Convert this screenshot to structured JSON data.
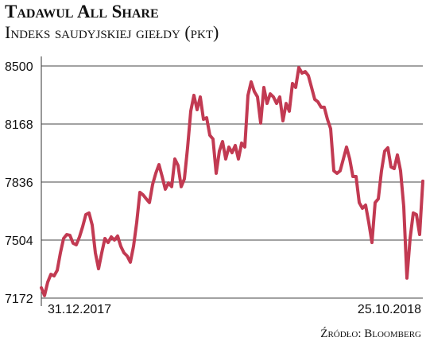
{
  "chart_data": {
    "type": "line",
    "title": "Tadawul All Share",
    "subtitle": "Indeks saudyjskiej giełdy (pkt)",
    "source": "Źródło: Bloomberg",
    "categories": [
      "31.12.2017",
      null,
      null,
      null,
      null,
      null,
      null,
      null,
      null,
      null,
      null,
      null,
      null,
      null,
      null,
      null,
      null,
      null,
      null,
      null,
      null,
      null,
      null,
      null,
      null,
      null,
      null,
      null,
      null,
      null,
      null,
      null,
      null,
      null,
      null,
      null,
      null,
      null,
      null,
      null,
      null,
      null,
      null,
      null,
      null,
      null,
      null,
      null,
      null,
      null,
      null,
      null,
      null,
      null,
      null,
      null,
      null,
      null,
      null,
      null,
      null,
      null,
      null,
      null,
      null,
      null,
      null,
      null,
      null,
      null,
      null,
      null,
      null,
      null,
      null,
      null,
      null,
      null,
      null,
      null,
      null,
      null,
      null,
      null,
      null,
      null,
      null,
      null,
      null,
      null,
      null,
      null,
      null,
      null,
      null,
      null,
      null,
      null,
      null,
      null,
      null,
      null,
      null,
      null,
      null,
      null,
      null,
      null,
      null,
      null,
      null,
      null,
      null,
      null,
      null,
      null,
      null,
      null,
      null,
      null,
      "25.10.2018"
    ],
    "series": [
      {
        "name": "Tadawul All Share",
        "color": "#c23a52",
        "values": [
          7231,
          7186,
          7263,
          7308,
          7299,
          7331,
          7431,
          7513,
          7536,
          7531,
          7486,
          7477,
          7522,
          7581,
          7650,
          7659,
          7590,
          7431,
          7340,
          7431,
          7513,
          7490,
          7522,
          7504,
          7527,
          7468,
          7431,
          7413,
          7377,
          7468,
          7604,
          7777,
          7763,
          7740,
          7718,
          7822,
          7886,
          7936,
          7868,
          7795,
          7831,
          7809,
          7968,
          7931,
          7809,
          7854,
          8032,
          8241,
          8332,
          8250,
          8323,
          8195,
          8204,
          8104,
          8082,
          7886,
          8013,
          8068,
          7968,
          8036,
          8004,
          8045,
          7968,
          8059,
          8036,
          8332,
          8409,
          8354,
          8323,
          8173,
          8377,
          8286,
          8341,
          8323,
          8286,
          8323,
          8186,
          8286,
          8241,
          8400,
          8377,
          8491,
          8459,
          8468,
          8445,
          8377,
          8309,
          8295,
          8264,
          8264,
          8195,
          8141,
          7900,
          7886,
          7900,
          7968,
          8036,
          7968,
          7868,
          7868,
          7718,
          7686,
          7704,
          7604,
          7490,
          7718,
          7740,
          7900,
          8013,
          8032,
          7922,
          7913,
          7991,
          7900,
          7695,
          7286,
          7513,
          7659,
          7650,
          7536,
          7841
        ]
      }
    ],
    "ylim": [
      7172,
      8500
    ],
    "yticks": [
      7172,
      7504,
      7836,
      8168,
      8500
    ],
    "grid": true
  }
}
